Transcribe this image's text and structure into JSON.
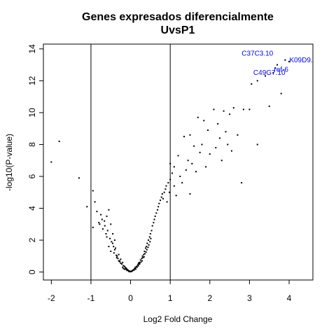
{
  "chart_data": {
    "type": "scatter",
    "title": "Genes expresados diferencialmente",
    "subtitle": "UvsP1",
    "xlabel": "Log2 Fold Change",
    "ylabel": "-log10(P-value)",
    "xlim": [
      -2.2,
      4.6
    ],
    "ylim": [
      -0.5,
      14.3
    ],
    "x_ticks": [
      "-2",
      "-1",
      "0",
      "1",
      "2",
      "3",
      "4"
    ],
    "y_ticks": [
      "0",
      "2",
      "4",
      "6",
      "8",
      "10",
      "12",
      "14"
    ],
    "vlines": [
      -1,
      1
    ],
    "point_color": "#000000",
    "label_color": "#0000ff",
    "points": [
      [
        -2.0,
        6.9
      ],
      [
        -1.8,
        8.2
      ],
      [
        -1.3,
        5.9
      ],
      [
        -1.1,
        4.1
      ],
      [
        -0.95,
        5.1
      ],
      [
        -0.9,
        4.4
      ],
      [
        -0.95,
        2.8
      ],
      [
        -0.85,
        3.8
      ],
      [
        -0.8,
        3.1
      ],
      [
        -0.75,
        3.6
      ],
      [
        -0.7,
        2.7
      ],
      [
        -0.65,
        2.9
      ],
      [
        -0.6,
        3.5
      ],
      [
        -0.55,
        3.9
      ],
      [
        -0.6,
        2.2
      ],
      [
        -0.5,
        3.0
      ],
      [
        -0.45,
        2.4
      ],
      [
        -0.55,
        1.6
      ],
      [
        -0.5,
        1.3
      ],
      [
        -0.45,
        1.8
      ],
      [
        -0.4,
        2.0
      ],
      [
        -0.42,
        1.2
      ],
      [
        -0.38,
        1.5
      ],
      [
        -0.35,
        0.9
      ],
      [
        -0.3,
        1.1
      ],
      [
        -0.28,
        0.7
      ],
      [
        -0.25,
        0.8
      ],
      [
        -0.22,
        0.5
      ],
      [
        -0.2,
        0.6
      ],
      [
        -0.18,
        0.4
      ],
      [
        -0.15,
        0.35
      ],
      [
        -0.12,
        0.25
      ],
      [
        -0.1,
        0.2
      ],
      [
        -0.08,
        0.12
      ],
      [
        -0.05,
        0.08
      ],
      [
        -0.03,
        0.05
      ],
      [
        0.0,
        0.02
      ],
      [
        0.03,
        0.05
      ],
      [
        0.05,
        0.1
      ],
      [
        0.08,
        0.15
      ],
      [
        0.1,
        0.2
      ],
      [
        0.12,
        0.3
      ],
      [
        0.15,
        0.35
      ],
      [
        0.18,
        0.45
      ],
      [
        0.2,
        0.55
      ],
      [
        0.22,
        0.6
      ],
      [
        0.25,
        0.75
      ],
      [
        0.28,
        0.85
      ],
      [
        0.3,
        1.0
      ],
      [
        0.33,
        1.1
      ],
      [
        0.35,
        1.3
      ],
      [
        0.38,
        1.5
      ],
      [
        0.4,
        1.6
      ],
      [
        0.42,
        1.8
      ],
      [
        0.45,
        2.0
      ],
      [
        0.48,
        2.2
      ],
      [
        0.5,
        2.4
      ],
      [
        0.53,
        2.6
      ],
      [
        0.55,
        2.9
      ],
      [
        0.58,
        3.1
      ],
      [
        0.6,
        3.3
      ],
      [
        0.62,
        3.5
      ],
      [
        0.65,
        3.7
      ],
      [
        0.68,
        3.9
      ],
      [
        0.7,
        4.1
      ],
      [
        0.72,
        4.3
      ],
      [
        0.75,
        4.5
      ],
      [
        0.78,
        4.7
      ],
      [
        0.8,
        4.9
      ],
      [
        0.82,
        4.6
      ],
      [
        0.85,
        5.0
      ],
      [
        0.88,
        5.2
      ],
      [
        0.9,
        5.4
      ],
      [
        0.92,
        4.4
      ],
      [
        0.95,
        5.6
      ],
      [
        0.98,
        5.0
      ],
      [
        1.0,
        5.8
      ],
      [
        1.0,
        6.8
      ],
      [
        1.05,
        6.2
      ],
      [
        1.1,
        5.4
      ],
      [
        1.1,
        6.6
      ],
      [
        1.15,
        4.8
      ],
      [
        1.2,
        7.3
      ],
      [
        1.25,
        6.0
      ],
      [
        1.3,
        5.6
      ],
      [
        1.35,
        8.5
      ],
      [
        1.4,
        6.4
      ],
      [
        1.45,
        7.0
      ],
      [
        1.5,
        4.9
      ],
      [
        1.5,
        8.6
      ],
      [
        1.55,
        6.8
      ],
      [
        1.6,
        7.9
      ],
      [
        1.65,
        6.3
      ],
      [
        1.7,
        9.7
      ],
      [
        1.75,
        7.5
      ],
      [
        1.8,
        8.0
      ],
      [
        1.85,
        9.5
      ],
      [
        1.9,
        6.6
      ],
      [
        1.95,
        8.9
      ],
      [
        2.0,
        7.4
      ],
      [
        2.1,
        10.2
      ],
      [
        2.15,
        7.8
      ],
      [
        2.2,
        9.3
      ],
      [
        2.25,
        8.4
      ],
      [
        2.3,
        7.0
      ],
      [
        2.35,
        10.1
      ],
      [
        2.4,
        8.8
      ],
      [
        2.45,
        8.0
      ],
      [
        2.5,
        9.9
      ],
      [
        2.55,
        7.6
      ],
      [
        2.6,
        10.3
      ],
      [
        2.7,
        8.6
      ],
      [
        2.8,
        5.6
      ],
      [
        2.85,
        10.2
      ],
      [
        3.0,
        10.2
      ],
      [
        3.05,
        11.8
      ],
      [
        3.2,
        8.0
      ],
      [
        3.2,
        12.0
      ],
      [
        3.4,
        12.3
      ],
      [
        3.5,
        10.4
      ],
      [
        3.6,
        12.5
      ],
      [
        3.65,
        12.8
      ],
      [
        3.7,
        13.0
      ],
      [
        3.8,
        11.2
      ],
      [
        3.9,
        13.3
      ],
      [
        4.0,
        13.2
      ],
      [
        -0.2,
        0.3
      ],
      [
        -0.18,
        0.22
      ],
      [
        -0.15,
        0.18
      ],
      [
        -0.13,
        0.28
      ],
      [
        -0.11,
        0.16
      ],
      [
        -0.09,
        0.1
      ],
      [
        -0.07,
        0.14
      ],
      [
        -0.04,
        0.03
      ],
      [
        -0.02,
        0.06
      ],
      [
        0.02,
        0.04
      ],
      [
        0.04,
        0.07
      ],
      [
        0.06,
        0.11
      ],
      [
        0.09,
        0.13
      ],
      [
        0.11,
        0.22
      ],
      [
        0.13,
        0.19
      ],
      [
        0.16,
        0.3
      ],
      [
        0.19,
        0.38
      ],
      [
        0.21,
        0.48
      ],
      [
        0.23,
        0.52
      ],
      [
        0.26,
        0.62
      ],
      [
        0.29,
        0.7
      ],
      [
        0.31,
        0.9
      ],
      [
        0.34,
        0.95
      ],
      [
        0.36,
        1.15
      ],
      [
        0.39,
        1.25
      ],
      [
        0.41,
        1.4
      ],
      [
        0.44,
        1.55
      ],
      [
        0.46,
        1.7
      ],
      [
        0.49,
        1.9
      ],
      [
        0.51,
        2.1
      ],
      [
        -0.25,
        0.55
      ],
      [
        -0.27,
        0.65
      ],
      [
        -0.3,
        0.7
      ],
      [
        -0.32,
        0.85
      ],
      [
        -0.34,
        1.0
      ],
      [
        -0.36,
        1.05
      ],
      [
        -0.4,
        1.4
      ],
      [
        -0.43,
        1.6
      ],
      [
        -0.48,
        1.9
      ],
      [
        -0.52,
        2.1
      ],
      [
        -0.58,
        2.6
      ],
      [
        -0.62,
        2.4
      ],
      [
        -0.66,
        3.2
      ],
      [
        -0.72,
        3.3
      ],
      [
        -0.78,
        3.0
      ]
    ],
    "labeled_genes": [
      {
        "name": "C37C3.10",
        "x": 3.2,
        "y": 13.7
      },
      {
        "name": "K09D9.",
        "x": 4.3,
        "y": 13.3
      },
      {
        "name": "C49G7.10",
        "x": 3.5,
        "y": 12.5
      },
      {
        "name": "ref-6",
        "x": 3.8,
        "y": 12.7
      }
    ]
  }
}
